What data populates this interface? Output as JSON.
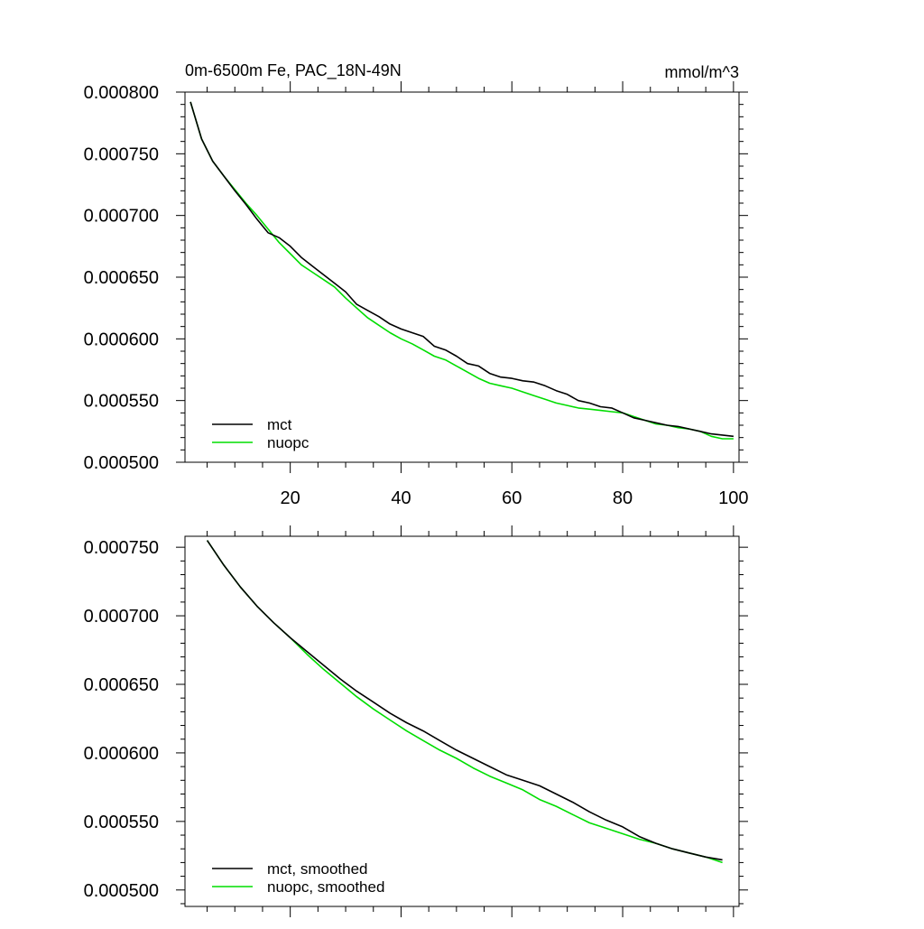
{
  "chart_data": [
    {
      "type": "line",
      "title": "0m-6500m Fe, PAC_18N-49N",
      "units": "mmol/m^3",
      "xlim": [
        1,
        101
      ],
      "ylim": [
        0.0005,
        0.0008
      ],
      "xticks": [
        20,
        40,
        60,
        80,
        100
      ],
      "xtick_labels": [
        "20",
        "40",
        "60",
        "80",
        "100"
      ],
      "yticks": [
        0.0005,
        0.00055,
        0.0006,
        0.00065,
        0.0007,
        0.00075,
        0.0008
      ],
      "ytick_labels": [
        "0.000500",
        "0.000550",
        "0.000600",
        "0.000650",
        "0.000700",
        "0.000750",
        "0.000800"
      ],
      "legend_position": "bottom-left",
      "series": [
        {
          "name": "mct",
          "color": "#000000",
          "x": [
            2,
            4,
            6,
            8,
            10,
            12,
            14,
            16,
            18,
            20,
            22,
            24,
            26,
            28,
            30,
            32,
            34,
            36,
            38,
            40,
            42,
            44,
            46,
            48,
            50,
            52,
            54,
            56,
            58,
            60,
            62,
            64,
            66,
            68,
            70,
            72,
            74,
            76,
            78,
            80,
            82,
            84,
            86,
            88,
            90,
            92,
            94,
            96,
            98,
            100
          ],
          "y": [
            0.000792,
            0.000762,
            0.000744,
            0.000732,
            0.00072,
            0.000709,
            0.000697,
            0.000686,
            0.000682,
            0.000675,
            0.000666,
            0.000659,
            0.000652,
            0.000645,
            0.000638,
            0.000628,
            0.000623,
            0.000618,
            0.000612,
            0.000608,
            0.000605,
            0.000602,
            0.000594,
            0.000591,
            0.000586,
            0.00058,
            0.000578,
            0.000572,
            0.000569,
            0.000568,
            0.000566,
            0.000565,
            0.000562,
            0.000558,
            0.000555,
            0.00055,
            0.000548,
            0.000545,
            0.000544,
            0.00054,
            0.000536,
            0.000534,
            0.000532,
            0.00053,
            0.000529,
            0.000527,
            0.000525,
            0.000523,
            0.000522,
            0.000521
          ]
        },
        {
          "name": "nuopc",
          "color": "#00dd00",
          "x": [
            2,
            4,
            6,
            8,
            10,
            12,
            14,
            16,
            18,
            20,
            22,
            24,
            26,
            28,
            30,
            32,
            34,
            36,
            38,
            40,
            42,
            44,
            46,
            48,
            50,
            52,
            54,
            56,
            58,
            60,
            62,
            64,
            66,
            68,
            70,
            72,
            74,
            76,
            78,
            80,
            82,
            84,
            86,
            88,
            90,
            92,
            94,
            96,
            98,
            100
          ],
          "y": [
            0.000792,
            0.000762,
            0.000744,
            0.000732,
            0.000721,
            0.00071,
            0.0007,
            0.000689,
            0.000678,
            0.000669,
            0.00066,
            0.000654,
            0.000648,
            0.000642,
            0.000633,
            0.000625,
            0.000617,
            0.000611,
            0.000605,
            0.0006,
            0.000596,
            0.000591,
            0.000586,
            0.000583,
            0.000578,
            0.000573,
            0.000568,
            0.000564,
            0.000562,
            0.00056,
            0.000557,
            0.000554,
            0.000551,
            0.000548,
            0.000546,
            0.000544,
            0.000543,
            0.000542,
            0.000541,
            0.00054,
            0.000537,
            0.000534,
            0.000531,
            0.00053,
            0.000528,
            0.000527,
            0.000525,
            0.000521,
            0.000519,
            0.000519
          ]
        }
      ]
    },
    {
      "type": "line",
      "title": "",
      "xlim": [
        1,
        101
      ],
      "ylim": [
        0.000488,
        0.000758
      ],
      "xticks": [
        20,
        40,
        60,
        80,
        100
      ],
      "xtick_labels": [],
      "yticks": [
        0.0005,
        0.00055,
        0.0006,
        0.00065,
        0.0007,
        0.00075
      ],
      "ytick_labels": [
        "0.000500",
        "0.000550",
        "0.000600",
        "0.000650",
        "0.000700",
        "0.000750"
      ],
      "legend_position": "bottom-left",
      "series": [
        {
          "name": "mct, smoothed",
          "color": "#000000",
          "x": [
            5,
            8,
            11,
            14,
            17,
            20,
            23,
            26,
            29,
            32,
            35,
            38,
            41,
            44,
            47,
            50,
            53,
            56,
            59,
            62,
            65,
            68,
            71,
            74,
            77,
            80,
            83,
            86,
            89,
            92,
            95,
            98
          ],
          "y": [
            0.000755,
            0.000737,
            0.000721,
            0.000707,
            0.000695,
            0.000684,
            0.000674,
            0.000664,
            0.000654,
            0.000645,
            0.000637,
            0.000629,
            0.000622,
            0.000616,
            0.000609,
            0.000602,
            0.000596,
            0.00059,
            0.000584,
            0.00058,
            0.000576,
            0.00057,
            0.000564,
            0.000557,
            0.000551,
            0.000546,
            0.000539,
            0.000534,
            0.00053,
            0.000527,
            0.000524,
            0.000522
          ]
        },
        {
          "name": "nuopc, smoothed",
          "color": "#00dd00",
          "x": [
            5,
            8,
            11,
            14,
            17,
            20,
            23,
            26,
            29,
            32,
            35,
            38,
            41,
            44,
            47,
            50,
            53,
            56,
            59,
            62,
            65,
            68,
            71,
            74,
            77,
            80,
            83,
            86,
            89,
            92,
            95,
            98
          ],
          "y": [
            0.000755,
            0.000737,
            0.000721,
            0.000707,
            0.000695,
            0.000684,
            0.000672,
            0.000661,
            0.000651,
            0.000641,
            0.000632,
            0.000624,
            0.000616,
            0.000609,
            0.000602,
            0.000596,
            0.000589,
            0.000583,
            0.000578,
            0.000573,
            0.000566,
            0.000561,
            0.000555,
            0.000549,
            0.000545,
            0.000541,
            0.000537,
            0.000534,
            0.00053,
            0.000527,
            0.000524,
            0.00052
          ]
        }
      ]
    }
  ]
}
